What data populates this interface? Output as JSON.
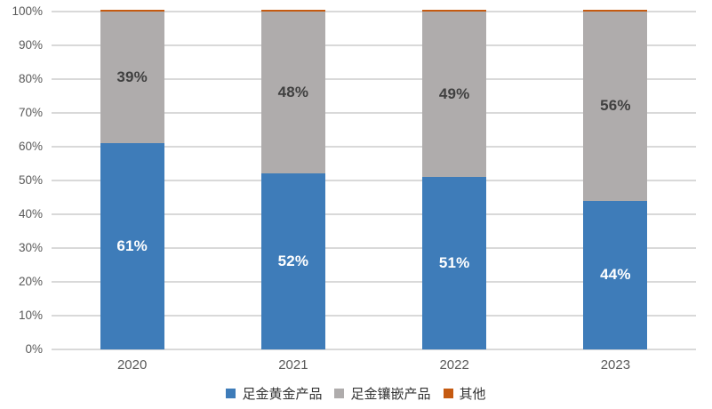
{
  "chart_data": {
    "type": "bar",
    "variant": "stacked-percent-column",
    "title": "",
    "xlabel": "",
    "ylabel": "",
    "categories": [
      "2020",
      "2021",
      "2022",
      "2023"
    ],
    "series": [
      {
        "name": "足金黄金产品",
        "color": "#3e7cb9",
        "values": [
          61,
          52,
          51,
          44
        ],
        "labels": [
          "61%",
          "52%",
          "51%",
          "44%"
        ],
        "label_color": "#ffffff",
        "show_labels": true
      },
      {
        "name": "足金镶嵌产品",
        "color": "#afacac",
        "values": [
          39,
          48,
          49,
          56
        ],
        "labels": [
          "39%",
          "48%",
          "49%",
          "56%"
        ],
        "label_color": "#404040",
        "show_labels": true
      },
      {
        "name": "其他",
        "color": "#c55a11",
        "values": [
          0.5,
          0.5,
          0.5,
          0.5
        ],
        "labels": [
          "",
          "",
          "",
          ""
        ],
        "label_color": "#404040",
        "show_labels": false
      }
    ],
    "y_axis": {
      "min": 0,
      "max": 100,
      "step": 10,
      "tick_labels": [
        "0%",
        "10%",
        "20%",
        "30%",
        "40%",
        "50%",
        "60%",
        "70%",
        "80%",
        "90%",
        "100%"
      ]
    },
    "grid": true,
    "gridline_color": "#d9d9d9",
    "background_color": "#ffffff",
    "legend_position": "bottom"
  }
}
